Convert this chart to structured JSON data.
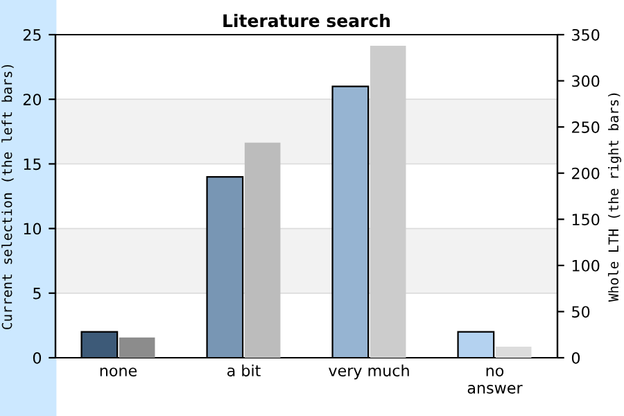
{
  "chart_data": {
    "type": "bar",
    "title": "Literature search",
    "categories": [
      "none",
      "a bit",
      "very much",
      "no\nanswer"
    ],
    "ylabel": "Current selection (the left bars)",
    "y2label": "Whole LTH (the right bars)",
    "series": [
      {
        "axis": "y",
        "colors": [
          "#3d5a78",
          "#7896b4",
          "#96b4d2",
          "#b4d2f0"
        ],
        "values": [
          2,
          14,
          21,
          2
        ]
      },
      {
        "axis": "y2",
        "colors": [
          "#8c8c8c",
          "#bcbcbc",
          "#cccccc",
          "#dcdcdc"
        ],
        "values": [
          22,
          233,
          338,
          12
        ]
      }
    ],
    "ylim": [
      0,
      25
    ],
    "yticks": [
      0,
      5,
      10,
      15,
      20,
      25
    ],
    "y2lim": [
      0,
      350
    ],
    "y2ticks": [
      0,
      50,
      100,
      150,
      200,
      250,
      300,
      350
    ],
    "bands": [
      {
        "axis": "y",
        "from": 5,
        "to": 10,
        "color": "#f2f2f2"
      },
      {
        "axis": "y",
        "from": 15,
        "to": 20,
        "color": "#f2f2f2"
      }
    ],
    "grid": "y"
  }
}
